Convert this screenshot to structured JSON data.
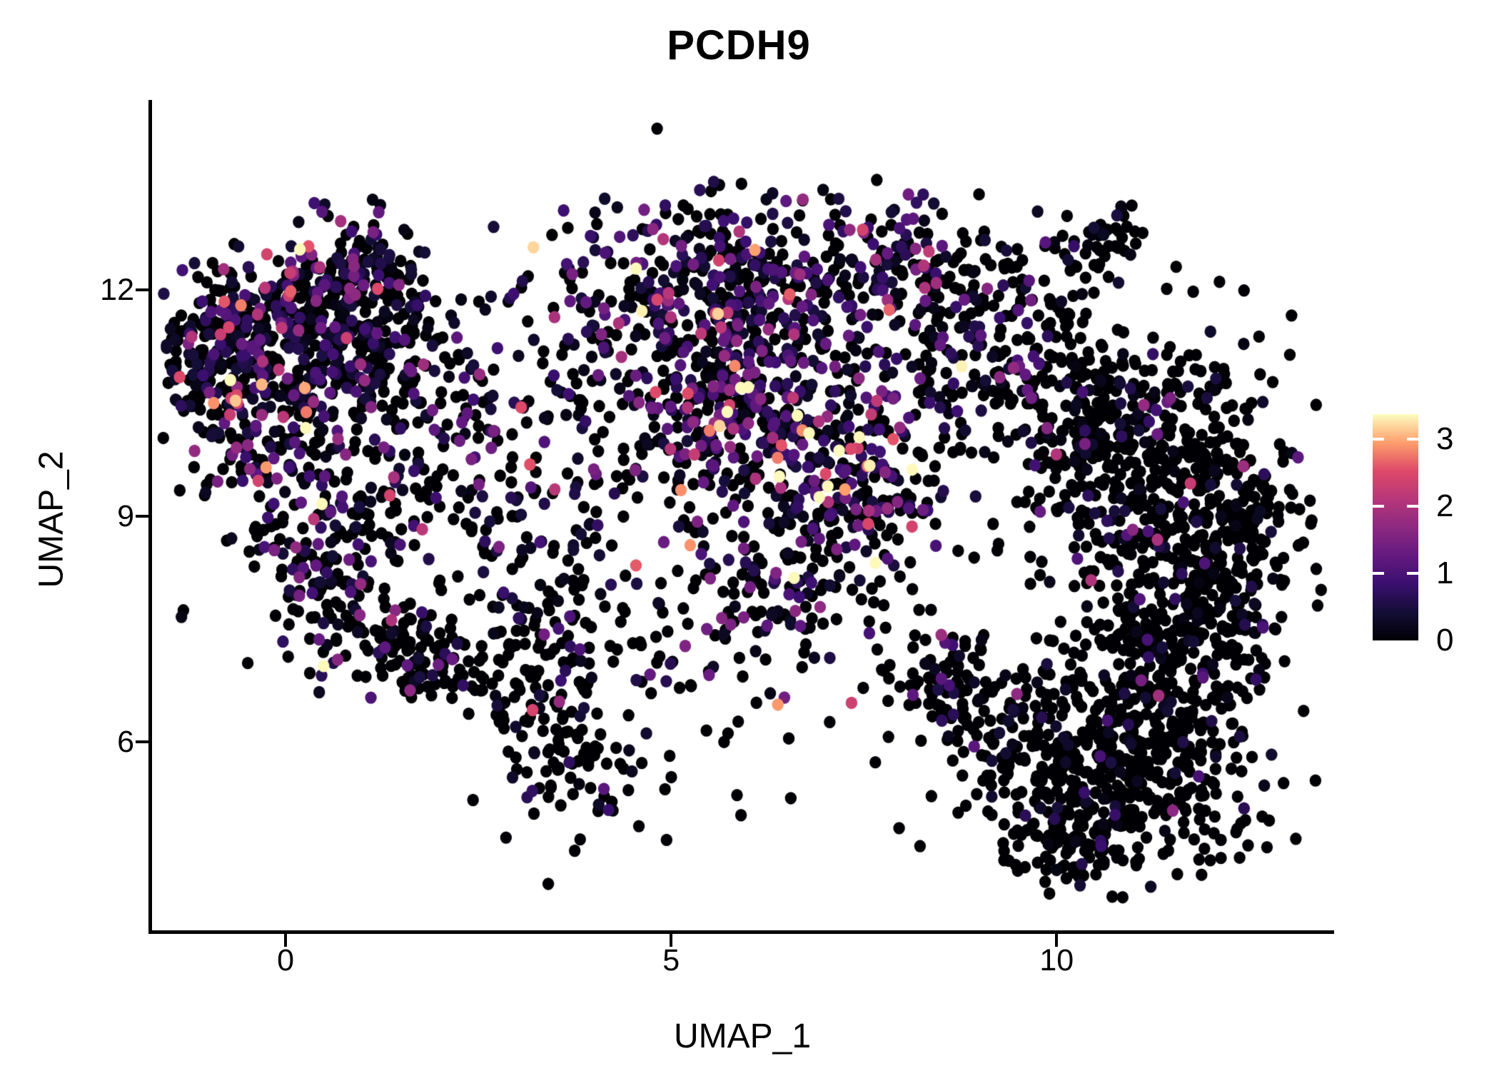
{
  "title": "PCDH9",
  "axes": {
    "x_label": "UMAP_1",
    "y_label": "UMAP_2",
    "x_tick_labels": [
      "0",
      "5",
      "10"
    ],
    "x_tick_values": [
      0,
      5,
      10
    ],
    "y_tick_labels": [
      "6",
      "9",
      "12"
    ],
    "y_tick_values": [
      6,
      9,
      12
    ]
  },
  "colorbar": {
    "tick_labels": [
      "0",
      "1",
      "2",
      "3"
    ],
    "tick_values": [
      0,
      1,
      2,
      3
    ],
    "vmax": 3.37,
    "colormap_name": "magma",
    "colormap": [
      [
        0.0,
        "#000004"
      ],
      [
        0.125,
        "#140e36"
      ],
      [
        0.25,
        "#3b0f70"
      ],
      [
        0.375,
        "#641a80"
      ],
      [
        0.5,
        "#8c2981"
      ],
      [
        0.625,
        "#b73779"
      ],
      [
        0.75,
        "#de4968"
      ],
      [
        0.875,
        "#fe9f6d"
      ],
      [
        1.0,
        "#fcfdbf"
      ]
    ]
  },
  "chart_data": {
    "type": "scatter",
    "title": "PCDH9",
    "xlabel": "UMAP_1",
    "ylabel": "UMAP_2",
    "x_domain": [
      -1.76,
      13.58
    ],
    "y_domain": [
      3.47,
      14.53
    ],
    "grid": false,
    "legend_position": "right-colorbar",
    "point_radius_px": 8.2,
    "expression_range": [
      0,
      3.37
    ],
    "cluster_fields": [
      "x",
      "y",
      "sx",
      "sy",
      "rot",
      "n",
      "p0",
      "mean"
    ],
    "clusters": [
      [
        0.25,
        11.35,
        0.82,
        0.6,
        -10,
        460,
        0.52,
        0.75
      ],
      [
        -0.95,
        11.05,
        0.42,
        0.55,
        0,
        110,
        0.5,
        0.8
      ],
      [
        0.95,
        12.1,
        0.5,
        0.4,
        0,
        130,
        0.5,
        0.8
      ],
      [
        -0.3,
        10.0,
        0.55,
        0.5,
        0,
        90,
        0.6,
        0.7
      ],
      [
        0.6,
        9.0,
        0.75,
        0.55,
        20,
        140,
        0.62,
        0.7
      ],
      [
        0.85,
        7.8,
        0.55,
        0.5,
        0,
        110,
        0.66,
        0.9
      ],
      [
        1.8,
        7.1,
        0.48,
        0.38,
        -30,
        95,
        0.8,
        0.5
      ],
      [
        2.1,
        10.4,
        0.75,
        0.75,
        0,
        110,
        0.6,
        0.6
      ],
      [
        3.3,
        9.2,
        0.75,
        0.8,
        0,
        110,
        0.62,
        0.65
      ],
      [
        3.5,
        6.0,
        0.45,
        0.7,
        10,
        110,
        0.8,
        0.45
      ],
      [
        3.2,
        7.4,
        0.5,
        0.45,
        0,
        70,
        0.72,
        0.5
      ],
      [
        5.55,
        11.8,
        1.05,
        0.72,
        0,
        500,
        0.45,
        0.75
      ],
      [
        5.9,
        10.1,
        0.95,
        0.6,
        0,
        300,
        0.45,
        0.9
      ],
      [
        7.3,
        9.25,
        0.6,
        0.5,
        0,
        170,
        0.4,
        1.1
      ],
      [
        6.5,
        8.3,
        0.55,
        0.5,
        0,
        90,
        0.6,
        0.7
      ],
      [
        8.0,
        12.35,
        0.72,
        0.5,
        0,
        150,
        0.5,
        0.85
      ],
      [
        8.7,
        10.9,
        0.85,
        0.75,
        0,
        150,
        0.62,
        0.7
      ],
      [
        10.6,
        12.6,
        0.3,
        0.25,
        0,
        45,
        0.85,
        0.5
      ],
      [
        9.6,
        11.7,
        0.5,
        0.45,
        0,
        80,
        0.7,
        0.6
      ],
      [
        11.4,
        9.2,
        0.85,
        1.05,
        0,
        520,
        0.86,
        0.45
      ],
      [
        12.3,
        8.3,
        0.45,
        0.8,
        0,
        160,
        0.88,
        0.4
      ],
      [
        10.4,
        10.3,
        0.6,
        0.55,
        0,
        130,
        0.75,
        0.5
      ],
      [
        10.7,
        5.6,
        1.0,
        0.62,
        -15,
        430,
        0.88,
        0.4
      ],
      [
        11.4,
        6.9,
        0.7,
        0.55,
        0,
        200,
        0.87,
        0.4
      ],
      [
        10.2,
        4.65,
        0.45,
        0.35,
        20,
        80,
        0.9,
        0.35
      ],
      [
        8.8,
        6.7,
        0.75,
        0.35,
        -38,
        130,
        0.82,
        0.45
      ],
      [
        5.5,
        7.6,
        0.8,
        0.6,
        0,
        70,
        0.65,
        0.7
      ],
      [
        6.3,
        6.6,
        1.6,
        1.1,
        0,
        40,
        0.75,
        0.6
      ]
    ]
  }
}
